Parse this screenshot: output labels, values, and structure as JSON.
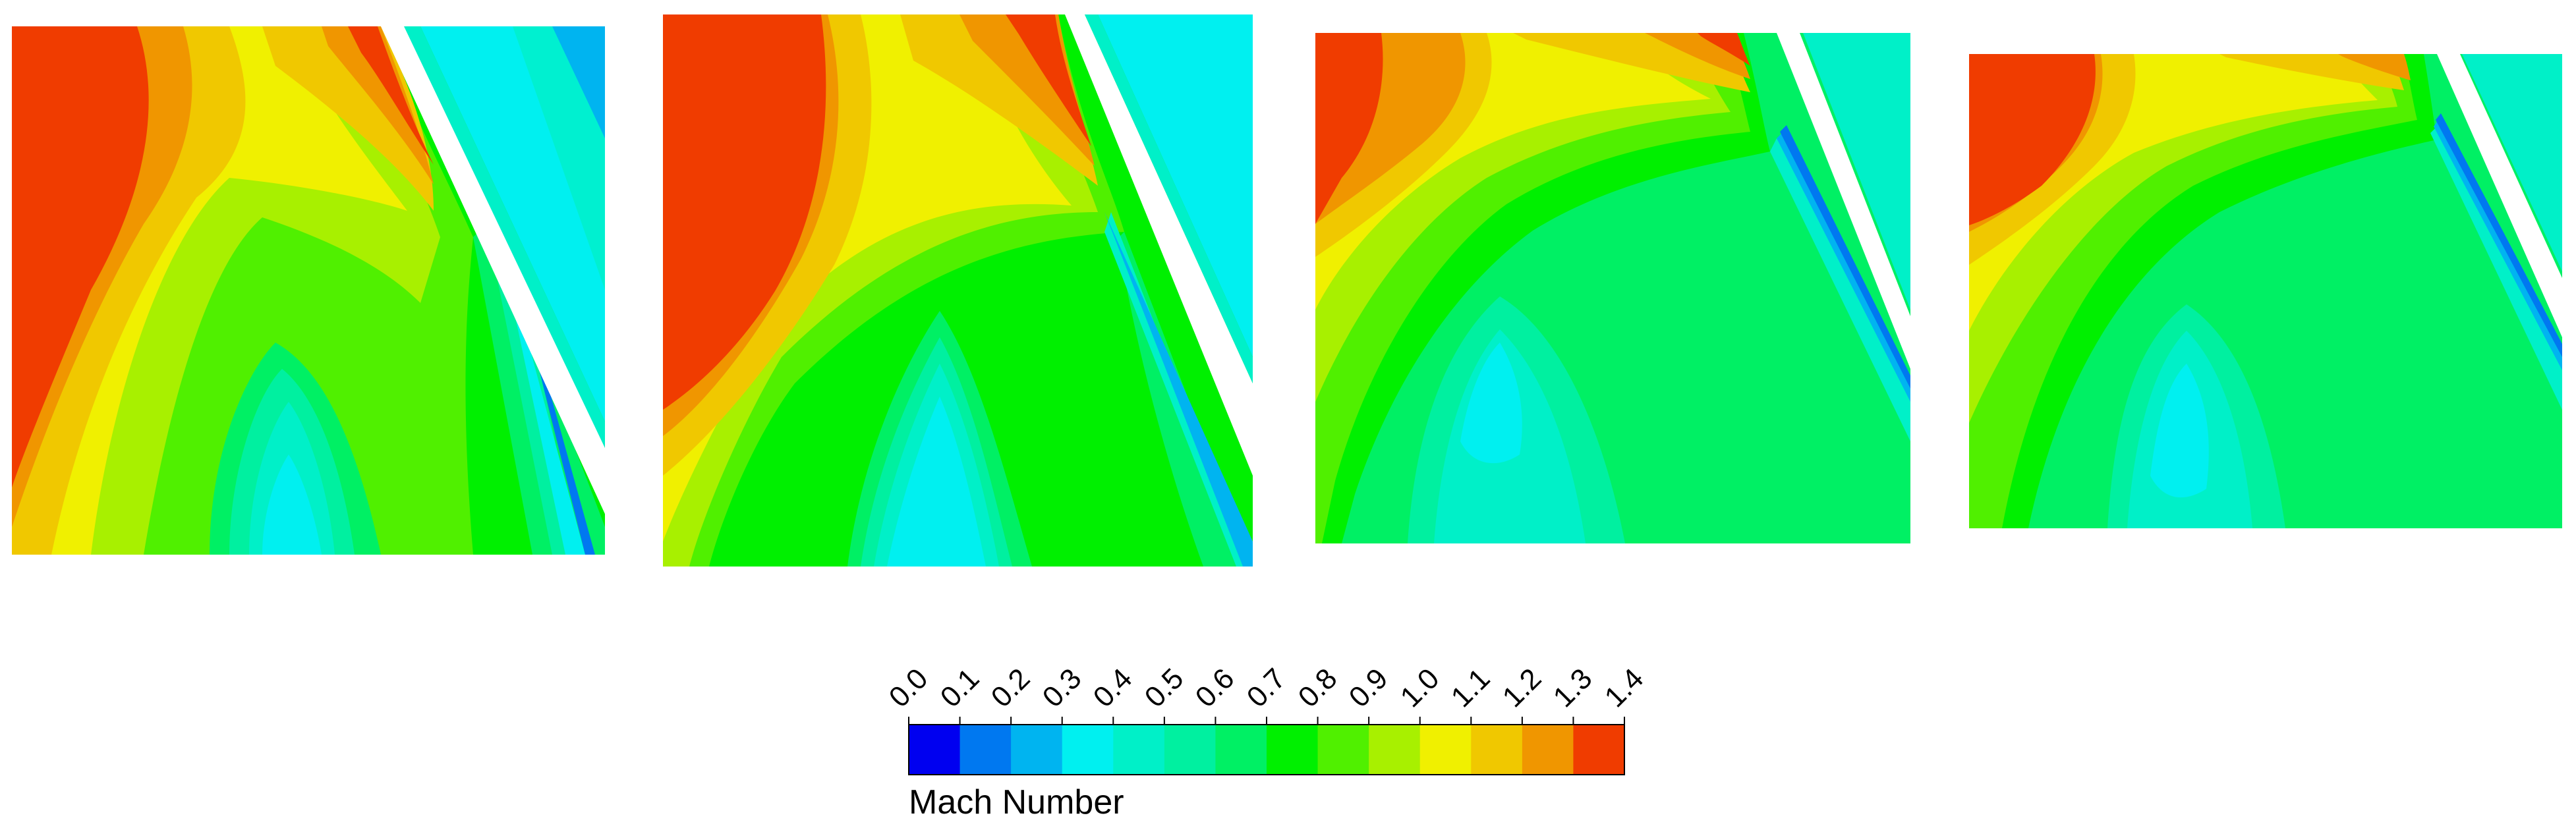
{
  "legend": {
    "title": "Mach Number",
    "ticks": [
      "0.0",
      "0.1",
      "0.2",
      "0.3",
      "0.4",
      "0.5",
      "0.6",
      "0.7",
      "0.8",
      "0.9",
      "1.0",
      "1.1",
      "1.2",
      "1.3",
      "1.4"
    ],
    "colors": [
      "#0000f0",
      "#0078f0",
      "#00b4f0",
      "#00f0f0",
      "#00f0c8",
      "#00f0a0",
      "#00f064",
      "#00f000",
      "#50f000",
      "#a8f000",
      "#f0f000",
      "#f0c800",
      "#f09600",
      "#f03c00"
    ]
  },
  "panels": [
    {
      "id": "panel-1"
    },
    {
      "id": "panel-2"
    },
    {
      "id": "panel-3"
    },
    {
      "id": "panel-4"
    }
  ]
}
